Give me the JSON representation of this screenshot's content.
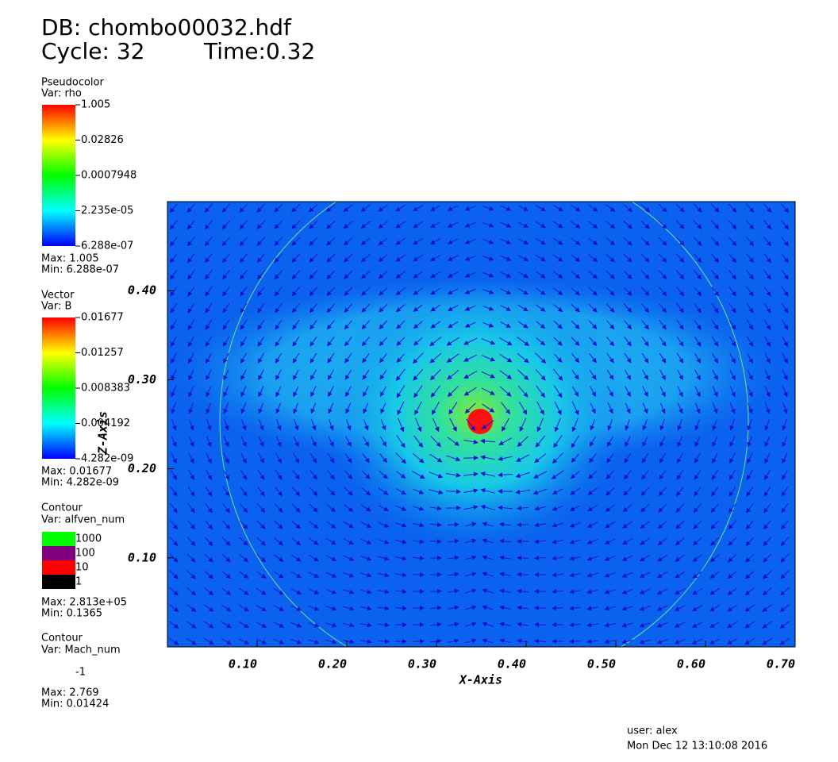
{
  "header": {
    "db": "DB: chombo00032.hdf",
    "cycle": "Cycle: 32",
    "time": "Time:0.32"
  },
  "legends": [
    {
      "title": "Pseudocolor",
      "var": "Var: rho",
      "labels": [
        "1.005",
        "0.02826",
        "0.0007948",
        "2.235e-05",
        "6.288e-07"
      ],
      "max": "Max:  1.005",
      "min": "Min:  6.288e-07"
    },
    {
      "title": "Vector",
      "var": "Var: B",
      "labels": [
        "0.01677",
        "0.01257",
        "0.008383",
        "0.004192",
        "4.282e-09"
      ],
      "max": "Max:  0.01677",
      "min": "Min:  4.282e-09"
    }
  ],
  "contours": [
    {
      "title": "Contour",
      "var": "Var: alfven_num",
      "levels": [
        {
          "label": "1000",
          "color": "#00ff00"
        },
        {
          "label": "100",
          "color": "#800080"
        },
        {
          "label": "10",
          "color": "#ff0000"
        },
        {
          "label": "1",
          "color": "#000000"
        }
      ],
      "max": "Max:  2.813e+05",
      "min": "Min:  0.1365"
    },
    {
      "title": "Contour",
      "var": "Var: Mach_num",
      "levels": [
        {
          "label": "-1",
          "color": "#ffffff"
        }
      ],
      "max": "Max:  2.769",
      "min": "Min:  0.01424"
    }
  ],
  "plot": {
    "xlabel": "X-Axis",
    "ylabel": "Z-Axis",
    "xlim": [
      0,
      0.7
    ],
    "ylim": [
      0,
      0.5
    ],
    "xticks": [
      {
        "value": 0.1,
        "label": "0.10"
      },
      {
        "value": 0.2,
        "label": "0.20"
      },
      {
        "value": 0.3,
        "label": "0.30"
      },
      {
        "value": 0.4,
        "label": "0.40"
      },
      {
        "value": 0.5,
        "label": "0.50"
      },
      {
        "value": 0.6,
        "label": "0.60"
      },
      {
        "value": 0.7,
        "label": "0.70"
      }
    ],
    "yticks": [
      {
        "value": 0.1,
        "label": "0.10"
      },
      {
        "value": 0.2,
        "label": "0.20"
      },
      {
        "value": 0.3,
        "label": "0.30"
      },
      {
        "value": 0.4,
        "label": "0.40"
      }
    ]
  },
  "footer": {
    "user": "user: alex",
    "date": "Mon Dec 12 13:10:08 2016"
  }
}
